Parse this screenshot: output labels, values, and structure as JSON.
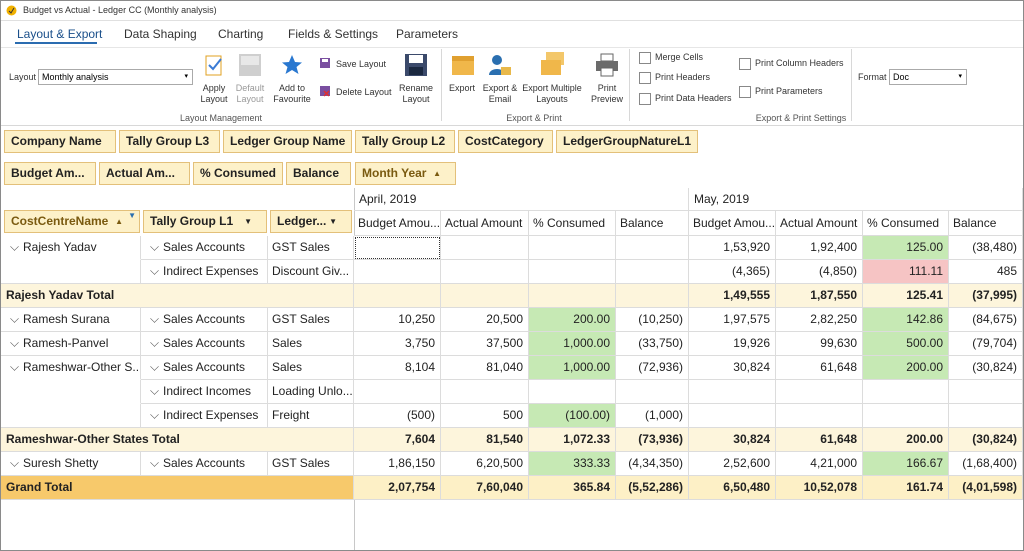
{
  "window": {
    "title": "Budget vs Actual - Ledger CC (Monthly analysis)"
  },
  "tabs": [
    "Layout & Export",
    "Data Shaping",
    "Charting",
    "Fields & Settings",
    "Parameters"
  ],
  "ribbon": {
    "layout_label": "Layout",
    "layout_value": "Monthly analysis",
    "layout_buttons": [
      "Apply Layout",
      "Default Layout",
      "Add to Favourite"
    ],
    "small_buttons": [
      "Save Layout",
      "Delete Layout"
    ],
    "rename": "Rename Layout",
    "layout_caption": "Layout Management",
    "export_buttons": [
      "Export",
      "Export & Email",
      "Export Multiple Layouts",
      "Print Preview"
    ],
    "export_caption": "Export & Print",
    "checkboxes": [
      "Merge Cells",
      "Print Headers",
      "Print Data Headers",
      "Print Column Headers",
      "Print Parameters"
    ],
    "settings_caption": "Export & Print Settings",
    "format_label": "Format",
    "format_value": "Doc"
  },
  "filter_fields": [
    "Company Name",
    "Tally Group L3",
    "Ledger Group Name",
    "Tally Group L2",
    "CostCategory",
    "LedgerGroupNatureL1"
  ],
  "data_fields": [
    "Budget Am...",
    "Actual Am...",
    "% Consumed",
    "Balance"
  ],
  "column_field": "Month Year",
  "row_fields": [
    "CostCentreName",
    "Tally Group L1",
    "Ledger..."
  ],
  "months": [
    {
      "name": "April, 2019",
      "columns": [
        "Budget Amou...",
        "Actual Amount",
        "% Consumed",
        "Balance"
      ]
    },
    {
      "name": "May, 2019",
      "columns": [
        "Budget Amou...",
        "Actual Amount",
        "% Consumed",
        "Balance"
      ]
    }
  ],
  "highlight_colors": {
    "good": "#c6e9b4",
    "bad": "#f6c4c4"
  },
  "rows": [
    {
      "cost_centre": "Rajesh Yadav",
      "group": "Sales Accounts",
      "ledger": "GST Sales",
      "values": [
        null,
        null,
        null,
        null,
        "1,53,920",
        "1,92,400",
        "125.00",
        "(38,480)"
      ],
      "highlights": {
        "6": "good"
      }
    },
    {
      "group": "Indirect Expenses",
      "ledger": "Discount Giv...",
      "values": [
        null,
        null,
        null,
        null,
        "(4,365)",
        "(4,850)",
        "111.11",
        "485"
      ],
      "highlights": {
        "6": "bad"
      }
    },
    {
      "total": "Rajesh Yadav Total",
      "values": [
        null,
        null,
        null,
        null,
        "1,49,555",
        "1,87,550",
        "125.41",
        "(37,995)"
      ]
    },
    {
      "cost_centre": "Ramesh Surana",
      "group": "Sales Accounts",
      "ledger": "GST Sales",
      "values": [
        "10,250",
        "20,500",
        "200.00",
        "(10,250)",
        "1,97,575",
        "2,82,250",
        "142.86",
        "(84,675)"
      ],
      "highlights": {
        "2": "good",
        "6": "good"
      }
    },
    {
      "cost_centre": "Ramesh-Panvel",
      "group": "Sales Accounts",
      "ledger": "Sales",
      "values": [
        "3,750",
        "37,500",
        "1,000.00",
        "(33,750)",
        "19,926",
        "99,630",
        "500.00",
        "(79,704)"
      ],
      "highlights": {
        "2": "good",
        "6": "good"
      }
    },
    {
      "cost_centre": "Rameshwar-Other S...",
      "group": "Sales Accounts",
      "ledger": "Sales",
      "values": [
        "8,104",
        "81,040",
        "1,000.00",
        "(72,936)",
        "30,824",
        "61,648",
        "200.00",
        "(30,824)"
      ],
      "highlights": {
        "2": "good",
        "6": "good"
      }
    },
    {
      "group": "Indirect Incomes",
      "ledger": "Loading Unlo...",
      "values": [
        null,
        null,
        null,
        null,
        null,
        null,
        null,
        null
      ]
    },
    {
      "group": "Indirect Expenses",
      "ledger": "Freight",
      "values": [
        "(500)",
        "500",
        "(100.00)",
        "(1,000)",
        null,
        null,
        null,
        null
      ],
      "highlights": {
        "2": "good"
      }
    },
    {
      "total": "Rameshwar-Other States Total",
      "values": [
        "7,604",
        "81,540",
        "1,072.33",
        "(73,936)",
        "30,824",
        "61,648",
        "200.00",
        "(30,824)"
      ]
    },
    {
      "cost_centre": "Suresh Shetty",
      "group": "Sales Accounts",
      "ledger": "GST Sales",
      "values": [
        "1,86,150",
        "6,20,500",
        "333.33",
        "(4,34,350)",
        "2,52,600",
        "4,21,000",
        "166.67",
        "(1,68,400)"
      ],
      "highlights": {
        "2": "good",
        "6": "good"
      }
    },
    {
      "grand_total": "Grand Total",
      "values": [
        "2,07,754",
        "7,60,040",
        "365.84",
        "(5,52,286)",
        "6,50,480",
        "10,52,078",
        "161.74",
        "(4,01,598)"
      ]
    }
  ]
}
